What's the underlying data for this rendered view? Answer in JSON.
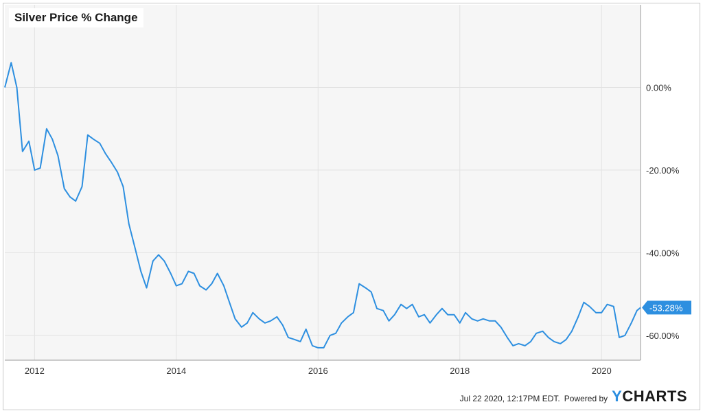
{
  "footer": {
    "timestamp": "Jul 22 2020, 12:17PM EDT.",
    "powered_by": "Powered by",
    "brand_first": "Y",
    "brand_rest": "CHARTS"
  },
  "chart_data": {
    "type": "line",
    "title": "Silver Price % Change",
    "xlabel": "",
    "ylabel": "",
    "x_ticks": [
      "2012",
      "2014",
      "2016",
      "2018",
      "2020"
    ],
    "y_ticks": [
      "0.00%",
      "-20.00%",
      "-40.00%",
      "-60.00%"
    ],
    "y_tick_values": [
      0,
      -20,
      -40,
      -60
    ],
    "xlim": [
      2011.58,
      2020.55
    ],
    "ylim": [
      -66,
      20
    ],
    "grid": true,
    "line_color": "#2d8fe0",
    "last_value_label": "-53.28%",
    "series": [
      {
        "x": [
          2011.58,
          2011.67,
          2011.75,
          2011.83,
          2011.92,
          2012.0,
          2012.08,
          2012.17,
          2012.25,
          2012.33,
          2012.42,
          2012.5,
          2012.58,
          2012.67,
          2012.75,
          2012.83,
          2012.92,
          2013.0,
          2013.08,
          2013.17,
          2013.25,
          2013.33,
          2013.42,
          2013.5,
          2013.58,
          2013.67,
          2013.75,
          2013.83,
          2013.92,
          2014.0,
          2014.08,
          2014.17,
          2014.25,
          2014.33,
          2014.42,
          2014.5,
          2014.58,
          2014.67,
          2014.75,
          2014.83,
          2014.92,
          2015.0,
          2015.08,
          2015.17,
          2015.25,
          2015.33,
          2015.42,
          2015.5,
          2015.58,
          2015.67,
          2015.75,
          2015.83,
          2015.92,
          2016.0,
          2016.08,
          2016.17,
          2016.25,
          2016.33,
          2016.42,
          2016.5,
          2016.58,
          2016.67,
          2016.75,
          2016.83,
          2016.92,
          2017.0,
          2017.08,
          2017.17,
          2017.25,
          2017.33,
          2017.42,
          2017.5,
          2017.58,
          2017.67,
          2017.75,
          2017.83,
          2017.92,
          2018.0,
          2018.08,
          2018.17,
          2018.25,
          2018.33,
          2018.42,
          2018.5,
          2018.58,
          2018.67,
          2018.75,
          2018.83,
          2018.92,
          2019.0,
          2019.08,
          2019.17,
          2019.25,
          2019.33,
          2019.42,
          2019.5,
          2019.58,
          2019.67,
          2019.75,
          2019.83,
          2019.92,
          2020.0,
          2020.08,
          2020.17,
          2020.25,
          2020.33,
          2020.42,
          2020.5,
          2020.55
        ],
        "values": [
          0,
          6,
          0,
          -15.5,
          -13,
          -20,
          -19.5,
          -10,
          -12.5,
          -16.5,
          -24.5,
          -26.5,
          -27.5,
          -24,
          -11.5,
          -12.5,
          -13.5,
          -16,
          -18,
          -20.5,
          -24,
          -33,
          -39,
          -44.5,
          -48.5,
          -42,
          -40.5,
          -42,
          -45,
          -48,
          -47.5,
          -44.5,
          -45,
          -48,
          -49,
          -47.5,
          -45,
          -48,
          -52,
          -56,
          -58,
          -57,
          -54.5,
          -56,
          -57,
          -56.5,
          -55.5,
          -57.5,
          -60.5,
          -61,
          -61.5,
          -58.5,
          -62.5,
          -63,
          -63,
          -60,
          -59.5,
          -57,
          -55.5,
          -54.5,
          -47.5,
          -48.5,
          -49.5,
          -53.5,
          -54,
          -56.5,
          -55,
          -52.5,
          -53.5,
          -52.5,
          -55.5,
          -55,
          -57,
          -55,
          -53.5,
          -55,
          -55,
          -57,
          -54.5,
          -56,
          -56.5,
          -56,
          -56.5,
          -56.5,
          -58,
          -60.5,
          -62.5,
          -62,
          -62.5,
          -61.5,
          -59.5,
          -59,
          -60.5,
          -61.5,
          -62,
          -61,
          -59,
          -55.5,
          -52,
          -53,
          -54.5,
          -54.5,
          -52.5,
          -53,
          -60.5,
          -60,
          -57,
          -54,
          -53.28
        ]
      }
    ]
  }
}
